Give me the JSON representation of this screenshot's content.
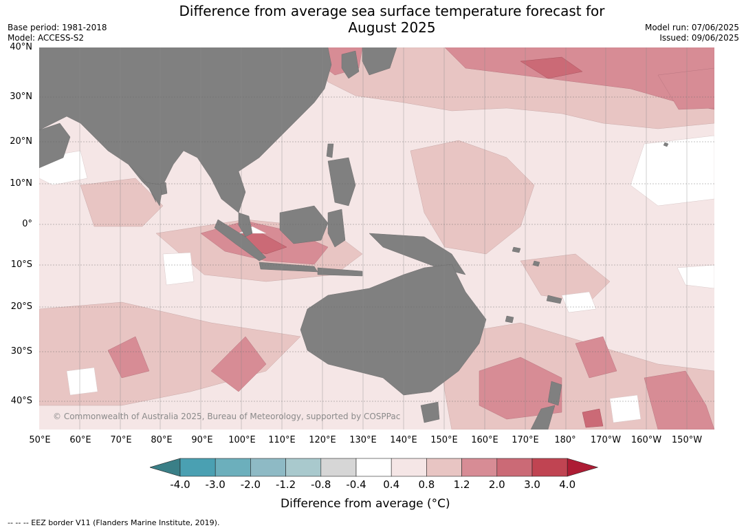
{
  "title_line1": "Difference from average sea surface temperature forecast for",
  "title_line2": "August 2025",
  "base_period": "Base period: 1981-2018",
  "model": "Model: ACCESS-S2",
  "model_run": "Model run: 07/06/2025",
  "issued": "Issued: 09/06/2025",
  "lat_labels": [
    "40°N",
    "30°N",
    "20°N",
    "10°N",
    "0°",
    "10°S",
    "20°S",
    "30°S",
    "40°S"
  ],
  "lon_labels": [
    "50°E",
    "60°E",
    "70°E",
    "80°E",
    "90°E",
    "100°E",
    "110°E",
    "120°E",
    "130°E",
    "140°E",
    "150°E",
    "160°E",
    "170°E",
    "180°",
    "170°W",
    "160°W",
    "150°W"
  ],
  "copyright": "© Commonwealth of Australia 2025, Bureau of Meteorology, supported by COSPPac",
  "colorbar": {
    "ticks": [
      "-4.0",
      "-3.0",
      "-2.0",
      "-1.2",
      "-0.8",
      "-0.4",
      "0.4",
      "0.8",
      "1.2",
      "2.0",
      "3.0",
      "4.0"
    ],
    "colors": [
      "#3a7f87",
      "#4aa0b2",
      "#6cafbc",
      "#8ebac5",
      "#a9c9cd",
      "#d6d6d6",
      "#ffffff",
      "#f5e6e6",
      "#e8c5c3",
      "#d78c95",
      "#cb6a76",
      "#c04452",
      "#ad1c34"
    ],
    "label": "Difference from average (°C)"
  },
  "footnote": "--  --  -- EEZ border V11 (Flanders Marine Institute, 2019).",
  "colors": {
    "land": "#808080",
    "ocean_base": "#f5e6e6"
  }
}
